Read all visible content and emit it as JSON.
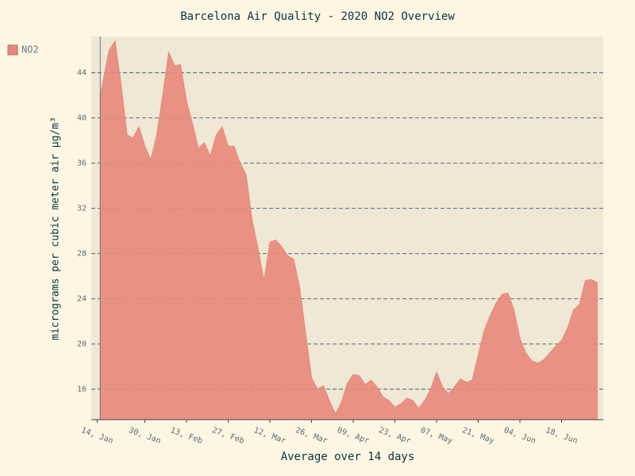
{
  "chart_data": {
    "type": "area",
    "title": "Barcelona Air Quality - 2020 NO2 Overview",
    "x_label": "Average over 14 days",
    "y_label": "micrograms per cubic meter air µg/m³",
    "x": [
      "01-15",
      "01-18",
      "01-20",
      "01-22",
      "01-24",
      "01-26",
      "01-28",
      "01-30",
      "02-01",
      "02-03",
      "02-05",
      "02-07",
      "02-09",
      "02-11",
      "02-13",
      "02-15",
      "02-17",
      "02-19",
      "02-21",
      "02-23",
      "02-25",
      "02-27",
      "02-29",
      "03-02",
      "03-04",
      "03-06",
      "03-08",
      "03-10",
      "03-12",
      "03-14",
      "03-16",
      "03-18",
      "03-20",
      "03-22",
      "03-24",
      "03-26",
      "03-28",
      "03-30",
      "04-01",
      "04-03",
      "04-05",
      "04-07",
      "04-09",
      "04-11",
      "04-13",
      "04-15",
      "04-17",
      "04-19",
      "04-21",
      "04-23",
      "04-25",
      "04-27",
      "04-29",
      "05-01",
      "05-03",
      "05-05",
      "05-07",
      "05-09",
      "05-11",
      "05-13",
      "05-15",
      "05-17",
      "05-19",
      "05-21",
      "05-23",
      "05-25",
      "05-27",
      "05-29",
      "05-31",
      "06-02",
      "06-04",
      "06-06",
      "06-08",
      "06-10",
      "06-12",
      "06-14",
      "06-16",
      "06-18",
      "06-20",
      "06-22",
      "06-24",
      "06-26",
      "06-28",
      "06-30"
    ],
    "series": [
      {
        "name": "NO2",
        "color": "#e8887b",
        "values": [
          42,
          46,
          46.8,
          43,
          38.5,
          38.2,
          39.2,
          37.5,
          36.3,
          38.5,
          42,
          45.8,
          44.6,
          44.7,
          41.5,
          39.5,
          37.3,
          37.8,
          36.6,
          38.5,
          39.2,
          37.5,
          37.5,
          36,
          35,
          31,
          28.5,
          25.6,
          29,
          29.2,
          28.6,
          27.8,
          27.5,
          25,
          21,
          17,
          16,
          16.3,
          15,
          13.8,
          14.8,
          16.5,
          17.3,
          17.2,
          16.4,
          16.8,
          16.2,
          15.3,
          15,
          14.4,
          14.7,
          15.2,
          15,
          14.3,
          15,
          16,
          17.5,
          16.2,
          15.6,
          16.2,
          16.9,
          16.6,
          16.8,
          19,
          21.2,
          22.5,
          23.6,
          24.4,
          24.5,
          23,
          20.5,
          19.2,
          18.5,
          18.3,
          18.6,
          19.2,
          19.8,
          20.3,
          21.4,
          23,
          23.5,
          25.6,
          25.7,
          25.4
        ]
      }
    ],
    "xlim": [
      "01-12",
      "07-02"
    ],
    "xticks": [
      {
        "value": "01-14",
        "label": "14, Jan"
      },
      {
        "value": "01-30",
        "label": "30, Jan"
      },
      {
        "value": "02-13",
        "label": "13, Feb"
      },
      {
        "value": "02-27",
        "label": "27, Feb"
      },
      {
        "value": "03-12",
        "label": "12, Mar"
      },
      {
        "value": "03-26",
        "label": "26, Mar"
      },
      {
        "value": "04-09",
        "label": "09, Apr"
      },
      {
        "value": "04-23",
        "label": "23, Apr"
      },
      {
        "value": "05-07",
        "label": "07, May"
      },
      {
        "value": "05-21",
        "label": "21, May"
      },
      {
        "value": "06-04",
        "label": "04, Jun"
      },
      {
        "value": "06-18",
        "label": "18, Jun"
      }
    ],
    "ylim": [
      13.3,
      47.2
    ],
    "yticks": [
      16,
      20,
      24,
      28,
      32,
      36,
      40,
      44
    ],
    "grid": true,
    "legend": "top-left"
  }
}
